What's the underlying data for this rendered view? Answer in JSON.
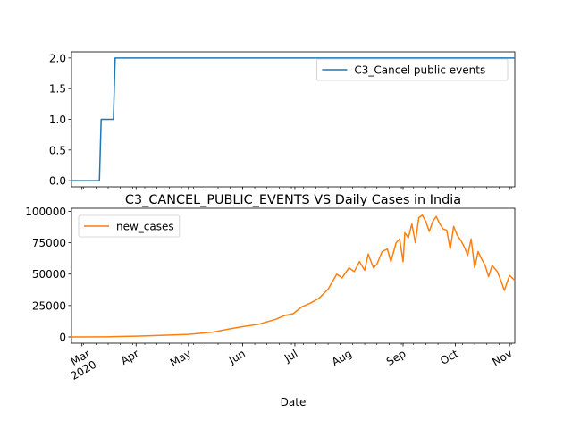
{
  "chart_data": [
    {
      "type": "line",
      "title": "",
      "xlabel": "",
      "ylabel": "",
      "x_range": [
        "2020-02-24",
        "2020-11-04"
      ],
      "ylim": [
        -0.1,
        2.1
      ],
      "yticks": [
        0.0,
        0.5,
        1.0,
        1.5,
        2.0
      ],
      "ytick_labels": [
        "0.0",
        "0.5",
        "1.0",
        "1.5",
        "2.0"
      ],
      "grid": false,
      "legend": {
        "placement": "top-right",
        "entries": [
          "C3_Cancel public events"
        ]
      },
      "series": [
        {
          "name": "C3_Cancel public events",
          "color": "#1f77b4",
          "step": true,
          "x": [
            "2020-02-24",
            "2020-03-11",
            "2020-03-12",
            "2020-03-19",
            "2020-03-20",
            "2020-11-04"
          ],
          "y": [
            0,
            0,
            1,
            1,
            2,
            2
          ]
        }
      ]
    },
    {
      "type": "line",
      "title": "C3_CANCEL_PUBLIC_EVENTS VS Daily Cases in India",
      "xlabel": "Date",
      "ylabel": "",
      "x_range": [
        "2020-02-24",
        "2020-11-04"
      ],
      "ylim": [
        -5000,
        102500
      ],
      "yticks": [
        0,
        25000,
        50000,
        75000,
        100000
      ],
      "ytick_labels": [
        "0",
        "25000",
        "50000",
        "75000",
        "100000"
      ],
      "xticks": [
        "2020-03-01",
        "2020-04-01",
        "2020-05-01",
        "2020-06-01",
        "2020-07-01",
        "2020-08-01",
        "2020-09-01",
        "2020-10-01",
        "2020-11-01"
      ],
      "xtick_labels": [
        "Mar\n2020",
        "Apr",
        "May",
        "Jun",
        "Jul",
        "Aug",
        "Sep",
        "Oct",
        "Nov"
      ],
      "grid": false,
      "legend": {
        "placement": "top-left",
        "entries": [
          "new_cases"
        ]
      },
      "series": [
        {
          "name": "new_cases",
          "color": "#ff7f0e",
          "x": [
            "2020-02-24",
            "2020-03-15",
            "2020-04-01",
            "2020-04-15",
            "2020-05-01",
            "2020-05-15",
            "2020-05-25",
            "2020-06-01",
            "2020-06-10",
            "2020-06-20",
            "2020-06-25",
            "2020-06-30",
            "2020-07-05",
            "2020-07-10",
            "2020-07-15",
            "2020-07-20",
            "2020-07-25",
            "2020-07-28",
            "2020-08-01",
            "2020-08-04",
            "2020-08-07",
            "2020-08-10",
            "2020-08-12",
            "2020-08-15",
            "2020-08-17",
            "2020-08-20",
            "2020-08-23",
            "2020-08-25",
            "2020-08-28",
            "2020-08-30",
            "2020-09-01",
            "2020-09-02",
            "2020-09-04",
            "2020-09-06",
            "2020-09-08",
            "2020-09-10",
            "2020-09-12",
            "2020-09-14",
            "2020-09-16",
            "2020-09-18",
            "2020-09-20",
            "2020-09-22",
            "2020-09-24",
            "2020-09-26",
            "2020-09-28",
            "2020-09-30",
            "2020-10-02",
            "2020-10-04",
            "2020-10-06",
            "2020-10-08",
            "2020-10-10",
            "2020-10-12",
            "2020-10-14",
            "2020-10-16",
            "2020-10-18",
            "2020-10-20",
            "2020-10-22",
            "2020-10-25",
            "2020-10-27",
            "2020-10-29",
            "2020-11-01",
            "2020-11-04"
          ],
          "y": [
            0,
            100,
            600,
            1200,
            2000,
            3800,
            6500,
            8200,
            10000,
            14000,
            17000,
            18500,
            24000,
            27000,
            31000,
            38000,
            50000,
            47000,
            55000,
            52000,
            60000,
            53000,
            66000,
            55000,
            58000,
            68000,
            70000,
            60000,
            75000,
            78000,
            60000,
            83000,
            79000,
            90000,
            75000,
            95000,
            97000,
            92000,
            84000,
            92000,
            96000,
            90000,
            86000,
            85000,
            70000,
            88000,
            81000,
            77000,
            72000,
            65000,
            78000,
            55000,
            68000,
            62000,
            57000,
            48000,
            57000,
            52000,
            45000,
            37000,
            49000,
            45000
          ]
        }
      ]
    }
  ]
}
